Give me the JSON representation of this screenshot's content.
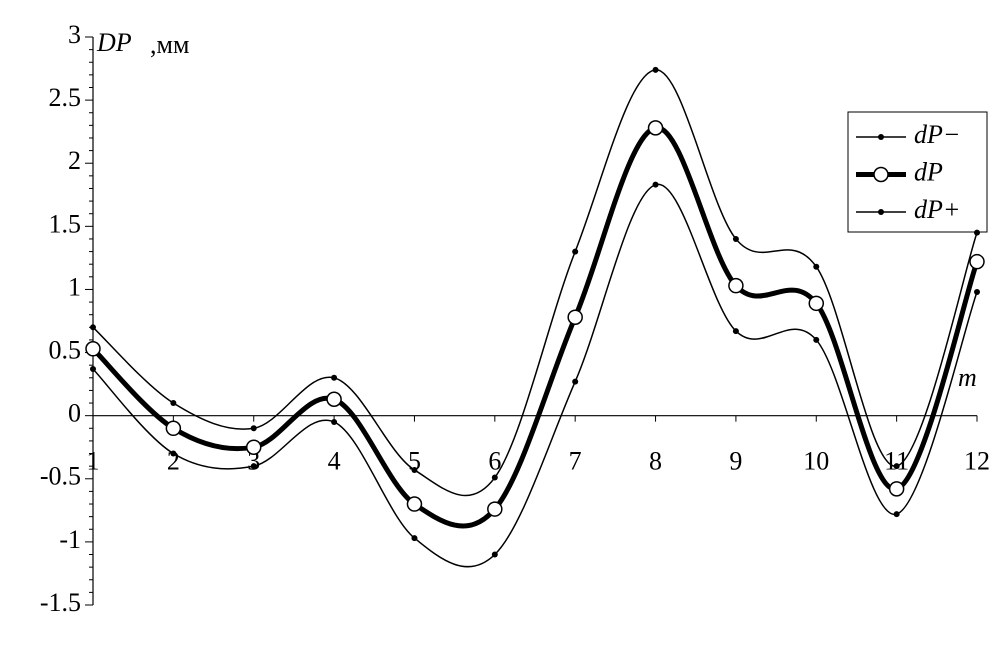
{
  "chart_data": {
    "type": "line",
    "ylabel": "DP",
    "ylabel_unit": ",мм",
    "xlabel": "m",
    "x": [
      1,
      2,
      3,
      4,
      5,
      6,
      7,
      8,
      9,
      10,
      11,
      12
    ],
    "xlim": [
      1,
      12
    ],
    "xticks": [
      1,
      2,
      3,
      4,
      5,
      6,
      7,
      8,
      9,
      10,
      11,
      12
    ],
    "ylim": [
      -1.5,
      3
    ],
    "yticks": [
      -1.5,
      -1,
      -0.5,
      0,
      0.5,
      1,
      1.5,
      2,
      2.5,
      3
    ],
    "legend": "upper right",
    "series": [
      {
        "name": "dP−",
        "color": "#000000",
        "values": [
          0.37,
          -0.3,
          -0.4,
          -0.05,
          -0.97,
          -1.1,
          0.27,
          1.83,
          0.67,
          0.6,
          -0.78,
          0.98
        ]
      },
      {
        "name": "dP",
        "color": "#000000",
        "values": [
          0.53,
          -0.1,
          -0.25,
          0.13,
          -0.7,
          -0.74,
          0.78,
          2.28,
          1.03,
          0.89,
          -0.58,
          1.22
        ]
      },
      {
        "name": "dP+",
        "color": "#000000",
        "values": [
          0.7,
          0.1,
          -0.1,
          0.3,
          -0.43,
          -0.49,
          1.3,
          2.74,
          1.4,
          1.18,
          -0.4,
          1.45
        ]
      }
    ]
  }
}
